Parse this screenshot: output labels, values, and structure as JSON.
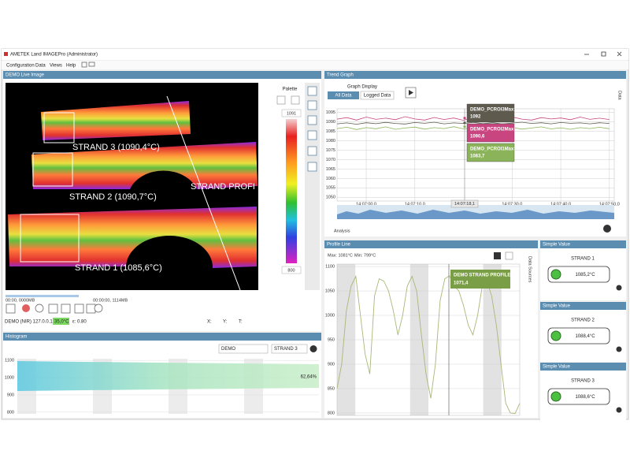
{
  "window": {
    "title": "AMETEK Land IMAGEPro (Administrator)",
    "menu": [
      "Configuration",
      "Data",
      "Views",
      "Help"
    ]
  },
  "live_image": {
    "title": "DEMO Live Image",
    "palette_label": "Palette",
    "palette_max": "1091",
    "palette_min": "800",
    "labels": [
      "STRAND 3 (1090,4°C)",
      "STRAND 2 (1090,7°C)",
      "STRAND PROFI",
      "STRAND 1 (1085,6°C)"
    ],
    "time_start": "00:00, 0000MB",
    "time_end": "00:00:00, 1114MB",
    "source": "DEMO (NIR) 127.0.0.1",
    "temperature": "35,0°C",
    "emissivity": "ε: 0.80",
    "coords": [
      "X:",
      "Y:",
      "T:"
    ]
  },
  "histogram": {
    "title": "Histogram",
    "source": "DEMO",
    "roi": "STRAND 3",
    "percent": "62,64%",
    "ylim": [
      790,
      1110
    ],
    "yticks": [
      1100,
      1000,
      900,
      800
    ]
  },
  "trend_graph": {
    "title": "Trend Graph",
    "graph_display": "Graph Display",
    "buttons": [
      "All Data",
      "Logged Data"
    ],
    "ylim": [
      1048,
      1097
    ],
    "yticks": [
      1095,
      1090,
      1085,
      1080,
      1075,
      1070,
      1065,
      1060,
      1055,
      1050
    ],
    "xlim": [
      -6,
      51
    ],
    "xticks": [
      {
        "value": 0,
        "label": "14:07:00,0"
      },
      {
        "value": 10,
        "label": "14:07:10,0"
      },
      {
        "value": 30,
        "label": "14:07:30,0"
      },
      {
        "value": 40,
        "label": "14:07:40,0"
      },
      {
        "value": 50,
        "label": "14:07:50,0"
      }
    ],
    "cursor": "14:07:18,1",
    "analysis": "Analysis",
    "side": "Data",
    "x": [
      -6,
      -4,
      -2,
      0,
      2,
      4,
      6,
      8,
      10,
      12,
      14,
      16,
      18,
      20,
      22,
      24,
      26,
      28,
      30,
      32,
      34,
      36,
      38,
      40,
      42,
      44,
      46,
      48,
      50
    ],
    "series": [
      {
        "name": "DEMO_PCROI3Max:",
        "readout": "1092",
        "color": "#5e5a4e",
        "values": [
          1089,
          1089.5,
          1088.8,
          1089.6,
          1089.1,
          1089.8,
          1089.2,
          1088.9,
          1089.7,
          1089.3,
          1089.9,
          1089,
          1089.5,
          1089.2,
          1089.8,
          1089.1,
          1089.6,
          1088.9,
          1089.4,
          1089.9,
          1089.2,
          1089.6,
          1089,
          1089.7,
          1089.3,
          1089.5,
          1089,
          1089.6,
          1089.2
        ]
      },
      {
        "name": "DEMO_PCROI2Max:",
        "readout": "1090,6",
        "color": "#c8457f",
        "values": [
          1091.5,
          1092.3,
          1091,
          1092.6,
          1091.4,
          1092,
          1091.2,
          1092.8,
          1091.6,
          1091,
          1092.4,
          1091.3,
          1092.1,
          1090.9,
          1092.5,
          1091.4,
          1092,
          1091.1,
          1092.7,
          1091.5,
          1091,
          1092.3,
          1091.6,
          1092.1,
          1091.2,
          1092.6,
          1091.4,
          1092,
          1091.3
        ]
      },
      {
        "name": "DEMO_PCROI1Max:",
        "readout": "1083,7",
        "color": "#8ab35a",
        "values": [
          1086.5,
          1087.2,
          1086,
          1087,
          1086.4,
          1087.4,
          1086.1,
          1086.8,
          1087.3,
          1086.2,
          1087,
          1086.5,
          1087.5,
          1086.3,
          1086.9,
          1086,
          1087.2,
          1086.6,
          1087.1,
          1086.2,
          1086.8,
          1087.4,
          1086.3,
          1086.9,
          1086.1,
          1087,
          1086.5,
          1087.2,
          1086.4
        ]
      }
    ]
  },
  "profile_line": {
    "title": "Profile Line",
    "max": "Max: 1081°C",
    "min": "Min: 799°C",
    "side": "Data Sources",
    "ylim": [
      795,
      1105
    ],
    "yticks": [
      1100,
      1050,
      1000,
      950,
      900,
      850,
      800
    ],
    "color": "#a8b878",
    "cursor_name": "DEMO STRAND PROFILE:",
    "cursor_value": "1071,4",
    "values": [
      850,
      900,
      1010,
      1060,
      1080,
      1000,
      920,
      880,
      1040,
      1075,
      1070,
      1050,
      1010,
      960,
      1000,
      1060,
      1080,
      1050,
      960,
      880,
      830,
      900,
      1030,
      1075,
      1081,
      1060,
      1050,
      1020,
      980,
      960,
      1000,
      1060,
      1070,
      1040,
      980,
      900,
      820,
      800,
      799,
      820
    ]
  },
  "simple_values": [
    {
      "title": "Simple Value",
      "name": "STRAND 1",
      "value": "1085,2°C"
    },
    {
      "title": "Simple Value",
      "name": "STRAND 2",
      "value": "1088,4°C"
    },
    {
      "title": "Simple Value",
      "name": "STRAND 3",
      "value": "1088,6°C"
    }
  ]
}
